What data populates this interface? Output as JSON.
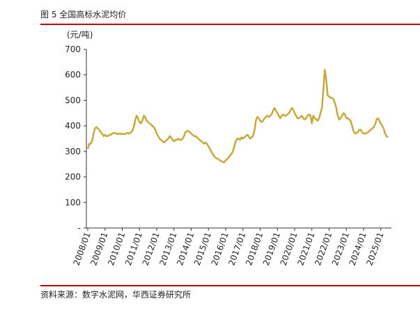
{
  "chart_data": {
    "type": "line",
    "title": "图 5 全国高标水泥均价",
    "unit_label": "(元/吨)",
    "source": "资料来源：数字水泥网，华西证券研究所",
    "title_color": "#c00000",
    "ylim": [
      0,
      700
    ],
    "yticks": [
      {
        "value": 0,
        "label": "-"
      },
      100,
      200,
      300,
      400,
      500,
      600,
      700
    ],
    "grid": false,
    "categories": [
      "2008/01",
      null,
      null,
      null,
      null,
      null,
      null,
      null,
      null,
      null,
      null,
      null,
      "2009/01",
      null,
      null,
      null,
      null,
      null,
      null,
      null,
      null,
      null,
      null,
      null,
      "2010/01",
      null,
      null,
      null,
      null,
      null,
      null,
      null,
      null,
      null,
      null,
      null,
      "2011/01",
      null,
      null,
      null,
      null,
      null,
      null,
      null,
      null,
      null,
      null,
      null,
      "2012/01",
      null,
      null,
      null,
      null,
      null,
      null,
      null,
      null,
      null,
      null,
      null,
      "2013/01",
      null,
      null,
      null,
      null,
      null,
      null,
      null,
      null,
      null,
      null,
      null,
      "2014/01",
      null,
      null,
      null,
      null,
      null,
      null,
      null,
      null,
      null,
      null,
      null,
      "2015/01",
      null,
      null,
      null,
      null,
      null,
      null,
      null,
      null,
      null,
      null,
      null,
      "2016/01",
      null,
      null,
      null,
      null,
      null,
      null,
      null,
      null,
      null,
      null,
      null,
      "2017/01",
      null,
      null,
      null,
      null,
      null,
      null,
      null,
      null,
      null,
      null,
      null,
      "2018/01",
      null,
      null,
      null,
      null,
      null,
      null,
      null,
      null,
      null,
      null,
      null,
      "2019/01",
      null,
      null,
      null,
      null,
      null,
      null,
      null,
      null,
      null,
      null,
      null,
      "2020/01",
      null,
      null,
      null,
      null,
      null,
      null,
      null,
      null,
      null,
      null,
      null,
      "2021/01",
      null,
      null,
      null,
      null,
      null,
      null,
      null,
      null,
      null,
      null,
      null,
      "2022/01",
      null,
      null,
      null,
      null,
      null,
      null,
      null,
      null,
      null,
      null,
      null,
      "2023/01",
      null,
      null,
      null,
      null,
      null,
      null,
      null,
      null,
      null,
      null,
      null,
      "2024/01",
      null,
      null,
      null,
      null,
      null,
      null,
      null,
      null,
      null,
      null,
      null,
      "2025/01",
      null,
      null,
      null,
      null,
      null
    ],
    "series": [
      {
        "color": "#c9a935",
        "values": [
          310,
          330,
          330,
          340,
          370,
          390,
          395,
          390,
          385,
          375,
          370,
          360,
          365,
          360,
          360,
          365,
          365,
          370,
          372,
          372,
          370,
          368,
          370,
          368,
          370,
          368,
          368,
          372,
          372,
          370,
          375,
          380,
          395,
          420,
          440,
          430,
          415,
          410,
          420,
          440,
          435,
          420,
          415,
          410,
          405,
          400,
          395,
          385,
          370,
          360,
          350,
          345,
          340,
          335,
          340,
          345,
          350,
          360,
          355,
          345,
          340,
          345,
          345,
          350,
          345,
          345,
          350,
          360,
          375,
          380,
          380,
          375,
          370,
          365,
          360,
          360,
          355,
          350,
          345,
          340,
          335,
          330,
          335,
          330,
          320,
          310,
          300,
          290,
          280,
          275,
          272,
          270,
          265,
          262,
          258,
          258,
          265,
          270,
          275,
          285,
          290,
          300,
          320,
          340,
          350,
          350,
          345,
          355,
          350,
          355,
          360,
          365,
          360,
          350,
          355,
          360,
          380,
          420,
          435,
          430,
          420,
          415,
          420,
          430,
          435,
          440,
          435,
          440,
          445,
          460,
          470,
          460,
          450,
          440,
          430,
          440,
          445,
          440,
          440,
          445,
          450,
          460,
          470,
          465,
          450,
          440,
          430,
          430,
          435,
          440,
          430,
          425,
          430,
          440,
          445,
          440,
          410,
          440,
          430,
          425,
          420,
          430,
          450,
          470,
          540,
          620,
          580,
          520,
          515,
          510,
          510,
          505,
          490,
          470,
          440,
          425,
          430,
          440,
          450,
          445,
          430,
          430,
          425,
          420,
          400,
          380,
          370,
          372,
          375,
          385,
          385,
          375,
          370,
          370,
          372,
          375,
          380,
          385,
          390,
          395,
          405,
          425,
          430,
          420,
          410,
          400,
          390,
          370,
          360,
          355
        ]
      }
    ]
  }
}
